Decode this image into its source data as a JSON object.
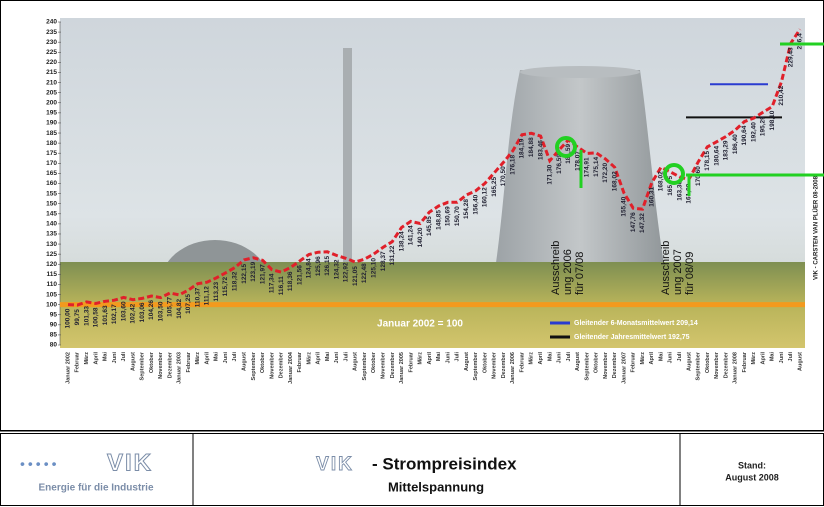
{
  "chart_data": {
    "type": "line",
    "credit": "VIK - CARSTEN VAN PLÜER 08-2008",
    "categories": [
      "Januar 2002",
      "Februar",
      "März",
      "April",
      "Mai",
      "Juni",
      "Juli",
      "August",
      "September",
      "Oktober",
      "November",
      "Dezember",
      "Januar 2003",
      "Februar",
      "März",
      "April",
      "Mai",
      "Juni",
      "Juli",
      "August",
      "September",
      "Oktober",
      "November",
      "Dezember",
      "Januar 2004",
      "Februar",
      "März",
      "April",
      "Mai",
      "Juni",
      "Juli",
      "August",
      "September",
      "Oktober",
      "November",
      "Dezember",
      "Januar 2005",
      "Februar",
      "März",
      "April",
      "Mai",
      "Juni",
      "Juli",
      "August",
      "September",
      "Oktober",
      "November",
      "Dezember",
      "Januar 2006",
      "Februar",
      "März",
      "April",
      "Mai",
      "Juni",
      "Juli",
      "August",
      "September",
      "Oktober",
      "November",
      "Dezember",
      "Januar 2007",
      "Februar",
      "März",
      "April",
      "Mai",
      "Juni",
      "Juli",
      "August",
      "September",
      "Oktober",
      "November",
      "Dezember",
      "Januar 2008",
      "Februar",
      "März",
      "April",
      "Mai",
      "Juni",
      "Juli",
      "August"
    ],
    "series": [
      {
        "color": "#e0202a",
        "values": [
          100.0,
          99.75,
          101.33,
          100.58,
          101.63,
          102.17,
          103.6,
          102.42,
          103.06,
          104.26,
          103.5,
          105.77,
          104.82,
          107.25,
          110.37,
          111.12,
          113.23,
          115.72,
          118.32,
          122.15,
          123.19,
          121.97,
          117.34,
          116.11,
          118.36,
          121.56,
          124.84,
          125.96,
          126.15,
          124.32,
          122.92,
          121.05,
          122.48,
          125.1,
          128.37,
          131.22,
          138.24,
          141.24,
          140.2,
          145.85,
          148.85,
          150.69,
          150.7,
          154.28,
          156.4,
          160.12,
          165.25,
          170.5,
          176.18,
          184.19,
          184.88,
          183.46,
          171.3,
          176.59,
          181.59,
          178.07,
          174.91,
          175.14,
          172.2,
          168.02,
          155.4,
          147.76,
          147.32,
          160.31,
          168.02,
          165.75,
          163.3,
          161.89,
          170.6,
          178.15,
          180.64,
          183.29,
          186.4,
          190.64,
          192.4,
          195.29,
          198.1,
          210.42,
          229.43,
          236.4
        ],
        "value_labels": [
          "100,00",
          "99,75",
          "101,33",
          "100,58",
          "101,63",
          "102,17",
          "103,60",
          "102,42",
          "103,06",
          "104,26",
          "103,50",
          "105,77",
          "104,82",
          "107,25",
          "110,37",
          "111,12",
          "113,23",
          "115,72",
          "118,32",
          "122,15",
          "123,19",
          "121,97",
          "117,34",
          "116,11",
          "118,36",
          "121,56",
          "124,84",
          "125,96",
          "126,15",
          "124,32",
          "122,92",
          "121,05",
          "122,48",
          "125,10",
          "128,37",
          "131,22",
          "138,24",
          "141,24",
          "140,20",
          "145,85",
          "148,85",
          "150,69",
          "150,70",
          "154,28",
          "156,40",
          "160,12",
          "165,25",
          "170,50",
          "176,18",
          "184,19",
          "184,88",
          "183,46",
          "171,30",
          "176,59",
          "181,59",
          "178,07",
          "174,91",
          "175,14",
          "172,20",
          "168,02",
          "155,40",
          "147,76",
          "147,32",
          "160,31",
          "168,02",
          "165,75",
          "163,30",
          "161,89",
          "170,60",
          "178,15",
          "180,64",
          "183,29",
          "186,40",
          "190,64",
          "192,40",
          "195,29",
          "198,10",
          "210,42",
          "229,43",
          "236,4"
        ]
      }
    ],
    "ylim": [
      80,
      240
    ],
    "yticks": [
      80,
      85,
      90,
      95,
      100,
      105,
      110,
      115,
      120,
      125,
      130,
      135,
      140,
      145,
      150,
      155,
      160,
      165,
      170,
      175,
      180,
      185,
      190,
      195,
      200,
      205,
      210,
      215,
      220,
      225,
      230,
      235,
      240
    ],
    "reference_lines": [
      {
        "value": 100,
        "label": "Januar 2002 = 100",
        "color": "#f39a1e"
      },
      {
        "value": 209.14,
        "label": "Gleitender 6-Monatsmittelwert 209,14",
        "color": "#2a3bd0"
      },
      {
        "value": 192.75,
        "label": "Gleitender Jahresmittelwert 192,75",
        "color": "#111111"
      }
    ],
    "annotations": [
      {
        "lines": [
          "Ausschreib",
          "ung 2006",
          "für 07/08"
        ]
      },
      {
        "lines": [
          "Ausschreib",
          "ung 2007",
          "für 08/09"
        ]
      }
    ]
  },
  "footer": {
    "logo": "VIK",
    "tagline": "Energie für die Industrie",
    "title_logo": "VIK",
    "title": "- Strompreisindex",
    "subtitle": "Mittelspannung",
    "stand_label": "Stand:",
    "stand_value": "August 2008"
  }
}
